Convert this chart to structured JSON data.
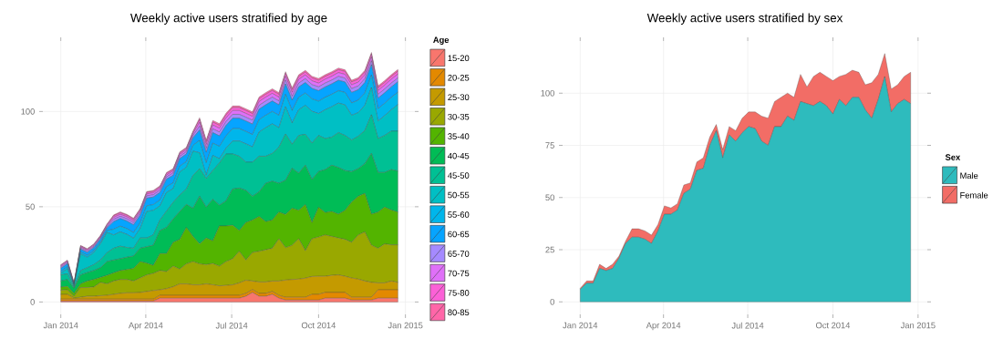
{
  "chart_data": [
    {
      "type": "area",
      "title": "Weekly active users stratified by age",
      "stacked": true,
      "grid": true,
      "legend": "right",
      "legend_title": "Age",
      "x": [
        "2014-01-01",
        "2014-01-08",
        "2014-01-15",
        "2014-01-22",
        "2014-01-29",
        "2014-02-05",
        "2014-02-12",
        "2014-02-19",
        "2014-02-26",
        "2014-03-05",
        "2014-03-12",
        "2014-03-19",
        "2014-03-26",
        "2014-04-02",
        "2014-04-09",
        "2014-04-16",
        "2014-04-23",
        "2014-04-30",
        "2014-05-07",
        "2014-05-14",
        "2014-05-21",
        "2014-05-28",
        "2014-06-04",
        "2014-06-11",
        "2014-06-18",
        "2014-06-25",
        "2014-07-02",
        "2014-07-09",
        "2014-07-16",
        "2014-07-23",
        "2014-07-30",
        "2014-08-06",
        "2014-08-13",
        "2014-08-20",
        "2014-08-27",
        "2014-09-03",
        "2014-09-10",
        "2014-09-17",
        "2014-09-24",
        "2014-10-01",
        "2014-10-08",
        "2014-10-15",
        "2014-10-22",
        "2014-10-29",
        "2014-11-05",
        "2014-11-12",
        "2014-11-19",
        "2014-11-26",
        "2014-12-03",
        "2014-12-10",
        "2014-12-17",
        "2014-12-24"
      ],
      "xlim": [
        "2013-12-13",
        "2015-01-11"
      ],
      "xticks": [
        {
          "value": "2014-01-01",
          "label": "Jan 2014"
        },
        {
          "value": "2014-04-01",
          "label": "Apr 2014"
        },
        {
          "value": "2014-07-01",
          "label": "Jul 2014"
        },
        {
          "value": "2014-10-01",
          "label": "Oct 2014"
        },
        {
          "value": "2015-01-01",
          "label": "Jan 2015"
        }
      ],
      "ylim": [
        -6.5,
        137
      ],
      "yticks": [
        0,
        50,
        100
      ],
      "series": [
        {
          "name": "15-20",
          "color": "#f8766d",
          "values": [
            0.5,
            0.5,
            0.5,
            0.5,
            0.5,
            0.5,
            0.5,
            0.5,
            0.5,
            0.5,
            0.5,
            0.5,
            0.5,
            0.5,
            0.5,
            2,
            2,
            2,
            2,
            2,
            2,
            2,
            2,
            2,
            2,
            2,
            2,
            2,
            3,
            5,
            3,
            3,
            4,
            2,
            1,
            1,
            1,
            1,
            1,
            1,
            2,
            2,
            2,
            2,
            1,
            1,
            1,
            1,
            2,
            2,
            2,
            2
          ]
        },
        {
          "name": "20-25",
          "color": "#e38900",
          "values": [
            1,
            1,
            1,
            1,
            1,
            1,
            1,
            1,
            1,
            1,
            1,
            1,
            1,
            1,
            1,
            1.5,
            1.5,
            1.5,
            1.5,
            1.5,
            1.5,
            1.5,
            1.5,
            1.5,
            1.5,
            1.5,
            1.5,
            1.5,
            1.5,
            1.5,
            1.5,
            1.5,
            1.5,
            1.5,
            1.5,
            1.5,
            1.5,
            1.5,
            3,
            3,
            3,
            3,
            3,
            3,
            1.5,
            1.5,
            1.5,
            1.5,
            4.4,
            4.4,
            4.4,
            4.4
          ]
        },
        {
          "name": "25-30",
          "color": "#c49a00",
          "values": [
            2.5,
            2.5,
            0.5,
            1,
            1.5,
            1.5,
            1.8,
            2,
            2.5,
            3,
            3.3,
            3.3,
            3.5,
            4,
            4.5,
            2.9,
            3.5,
            4.5,
            6,
            6,
            5.5,
            5.5,
            6,
            5.5,
            5,
            5.2,
            5.5,
            6.5,
            6.9,
            4.5,
            6,
            6,
            5.5,
            7.5,
            9,
            9.3,
            9.5,
            10,
            9.4,
            9.5,
            8.5,
            9,
            9.2,
            8.5,
            10.1,
            9.5,
            8.5,
            7.8,
            3.6,
            3.6,
            4.6,
            3.9
          ]
        },
        {
          "name": "30-35",
          "color": "#99a800",
          "values": [
            2.2,
            2.4,
            1,
            5.1,
            4.6,
            4.9,
            7,
            6,
            7,
            7.3,
            7,
            6.2,
            7.6,
            8.7,
            9,
            10.1,
            9,
            10.8,
            7.8,
            10.5,
            12.2,
            11,
            10.1,
            11.2,
            10.3,
            12.5,
            13.7,
            16.6,
            10.6,
            15,
            16.1,
            16.9,
            17.2,
            22.2,
            17,
            18,
            21.2,
            14.4,
            19.8,
            20.6,
            21.7,
            20.4,
            19.4,
            19.4,
            18.7,
            23.2,
            25.8,
            19.5,
            18.2,
            20.5,
            19,
            19.7
          ]
        },
        {
          "name": "35-40",
          "color": "#53b400",
          "values": [
            1.7,
            1.8,
            1.5,
            1.9,
            3.4,
            3.9,
            2.6,
            4.5,
            4.3,
            4.7,
            5.2,
            6.6,
            8.6,
            6.2,
            4.2,
            8.9,
            9.4,
            12.5,
            15.6,
            19.1,
            13.2,
            10.5,
            14,
            11.9,
            21.1,
            18.7,
            17.6,
            10.9,
            19.7,
            17,
            18.3,
            14.8,
            14.8,
            14,
            17.4,
            19.4,
            14.9,
            24.2,
            8.5,
            15.6,
            11.7,
            13.1,
            12.5,
            15.2,
            21.1,
            20.3,
            20.2,
            16.3,
            19,
            19.3,
            18.3,
            17.2
          ]
        },
        {
          "name": "40-45",
          "color": "#00bc56",
          "values": [
            3.1,
            3.6,
            2.7,
            4.7,
            4.4,
            4.7,
            5.1,
            7.2,
            6.7,
            6.2,
            6.5,
            6.5,
            7,
            8.6,
            10.6,
            12.1,
            13.7,
            12.3,
            14.6,
            12.1,
            14.8,
            25,
            16.2,
            21.8,
            10.9,
            13.2,
            19,
            22.3,
            16.9,
            12.5,
            12.9,
            20.1,
            20.4,
            15.1,
            18,
            21,
            19.5,
            20.7,
            22.6,
            18.8,
            22.6,
            24.3,
            24.5,
            20.9,
            16,
            14.5,
            15.6,
            31.9,
            20.8,
            18.2,
            21.2,
            21.5
          ]
        },
        {
          "name": "45-50",
          "color": "#00c094",
          "values": [
            3.2,
            3,
            0.3,
            2.3,
            2.6,
            3.1,
            4,
            4.7,
            6.2,
            6.6,
            5.1,
            4.1,
            5.4,
            4.6,
            5.4,
            5.5,
            8.6,
            8.7,
            8.7,
            8.1,
            17.2,
            14.5,
            15,
            15.1,
            22.2,
            24.6,
            18.4,
            16.7,
            14.8,
            17.9,
            18.7,
            14.2,
            14.6,
            18.9,
            24.3,
            12.6,
            19.8,
            16.2,
            19.1,
            18.9,
            16.3,
            14.7,
            18.3,
            18.4,
            16.6,
            17,
            17.4,
            20.3,
            17.8,
            19.4,
            20.2,
            21
          ]
        },
        {
          "name": "50-55",
          "color": "#00bfc4",
          "values": [
            0.9,
            2.7,
            0.7,
            8.7,
            5.5,
            6.4,
            8.5,
            10.6,
            7,
            7.5,
            6.9,
            5.3,
            4.9,
            13.9,
            12.9,
            7.5,
            9.8,
            7.2,
            12.1,
            11.4,
            12.8,
            8.3,
            1.8,
            7.9,
            2.2,
            3,
            6.8,
            8,
            9.6,
            8,
            12.7,
            15,
            15.5,
            10.3,
            14.3,
            11.2,
            13.5,
            15.2,
            16.7,
            11.5,
            15.1,
            16,
            15.5,
            16.1,
            13,
            12.4,
            13.2,
            14.3,
            9.2,
            10.4,
            11.2,
            13.9
          ]
        },
        {
          "name": "55-60",
          "color": "#00b6eb",
          "values": [
            1,
            1,
            0.4,
            1,
            1,
            1,
            1,
            1,
            3,
            3,
            3,
            3,
            3,
            3,
            3,
            3,
            3,
            3,
            3,
            3,
            3,
            6.5,
            6.5,
            6.5,
            6.5,
            6.5,
            6.5,
            6.5,
            6.5,
            6.5,
            6.5,
            6.5,
            6.5,
            6.5,
            6.5,
            6.5,
            6.5,
            6.5,
            6.5,
            6.5,
            6.5,
            6.5,
            6.5,
            6.5,
            6.5,
            6.5,
            6.5,
            6.5,
            6.5,
            6.5,
            6.5,
            6.5
          ]
        },
        {
          "name": "60-65",
          "color": "#06a4ff",
          "values": [
            1.5,
            1.5,
            0.4,
            1.5,
            1.5,
            1.5,
            1.5,
            1.5,
            4,
            4,
            4,
            4,
            4,
            4,
            4,
            4,
            4,
            4,
            4,
            4,
            4,
            5.5,
            5.5,
            5.5,
            5.5,
            5.5,
            5.5,
            5.5,
            5.5,
            5.5,
            5.5,
            5.5,
            5.5,
            5.5,
            5.5,
            5.5,
            5.5,
            5.5,
            5.5,
            5.5,
            5.5,
            5.5,
            5.5,
            5.5,
            5.5,
            5.5,
            5.5,
            5.5,
            5.5,
            5.5,
            5.5,
            5.5
          ]
        },
        {
          "name": "65-70",
          "color": "#a58aff",
          "values": [
            0.6,
            0.6,
            0.3,
            0.6,
            0.6,
            0.6,
            0.6,
            0.6,
            1.2,
            1.2,
            1.2,
            1.2,
            1.2,
            1.2,
            1.2,
            1.2,
            1.2,
            1.2,
            1.2,
            1.2,
            1.2,
            2,
            2,
            2,
            2,
            2,
            2,
            2,
            2,
            2,
            2,
            2,
            2,
            2,
            2,
            2,
            2,
            2,
            2,
            2,
            2,
            2,
            2,
            2,
            2,
            2,
            2,
            2,
            2,
            2,
            2,
            2
          ]
        },
        {
          "name": "70-75",
          "color": "#df70f8",
          "values": [
            0.6,
            0.6,
            0.3,
            0.6,
            0.6,
            0.6,
            0.6,
            0.6,
            1,
            1,
            1,
            1,
            1,
            1,
            1,
            1,
            1,
            1,
            1,
            1,
            1,
            2,
            2,
            2,
            2,
            2,
            2,
            2,
            2,
            2,
            2,
            2,
            2,
            2,
            2,
            2,
            2,
            2,
            2,
            2,
            2,
            2,
            2,
            2,
            2,
            2,
            2,
            2,
            2,
            2,
            2,
            2
          ]
        },
        {
          "name": "75-80",
          "color": "#fb61d7",
          "values": [
            0.5,
            0.5,
            0.2,
            0.5,
            0.5,
            0.5,
            0.5,
            0.5,
            0.8,
            0.8,
            0.8,
            0.8,
            0.8,
            0.8,
            0.8,
            0.8,
            0.8,
            0.8,
            0.8,
            0.8,
            0.8,
            1.5,
            1.5,
            1.5,
            1.5,
            1.5,
            1.5,
            1.5,
            1.5,
            1.5,
            1.5,
            1.5,
            1.5,
            1.5,
            1.5,
            1.5,
            1.5,
            1.5,
            1.5,
            1.5,
            1.5,
            1.5,
            1.5,
            1.5,
            1.5,
            1.5,
            1.5,
            1.5,
            1.5,
            1.5,
            1.5,
            1.5
          ]
        },
        {
          "name": "80-85",
          "color": "#ff66a8",
          "values": [
            0.3,
            0.3,
            0.2,
            0.3,
            0.3,
            0.3,
            0.3,
            0.3,
            0.5,
            0.5,
            0.5,
            0.5,
            0.5,
            0.5,
            0.5,
            0.5,
            0.5,
            0.5,
            0.5,
            0.5,
            0.5,
            0.9,
            0.9,
            0.9,
            0.9,
            0.9,
            0.9,
            0.9,
            0.9,
            0.9,
            0.9,
            0.9,
            0.9,
            0.9,
            0.9,
            0.9,
            0.9,
            0.9,
            0.9,
            0.9,
            0.9,
            0.9,
            0.9,
            0.9,
            0.9,
            0.9,
            0.9,
            0.9,
            0.9,
            0.9,
            0.9,
            0.9
          ]
        }
      ]
    },
    {
      "type": "area",
      "title": "Weekly active users stratified by sex",
      "stacked": true,
      "grid": true,
      "legend": "right",
      "legend_title": "Sex",
      "x": [
        "2014-01-01",
        "2014-01-08",
        "2014-01-15",
        "2014-01-22",
        "2014-01-29",
        "2014-02-05",
        "2014-02-12",
        "2014-02-19",
        "2014-02-26",
        "2014-03-05",
        "2014-03-12",
        "2014-03-19",
        "2014-03-26",
        "2014-04-02",
        "2014-04-09",
        "2014-04-16",
        "2014-04-23",
        "2014-04-30",
        "2014-05-07",
        "2014-05-14",
        "2014-05-21",
        "2014-05-28",
        "2014-06-04",
        "2014-06-11",
        "2014-06-18",
        "2014-06-25",
        "2014-07-02",
        "2014-07-09",
        "2014-07-16",
        "2014-07-23",
        "2014-07-30",
        "2014-08-06",
        "2014-08-13",
        "2014-08-20",
        "2014-08-27",
        "2014-09-03",
        "2014-09-10",
        "2014-09-17",
        "2014-09-24",
        "2014-10-01",
        "2014-10-08",
        "2014-10-15",
        "2014-10-22",
        "2014-10-29",
        "2014-11-05",
        "2014-11-12",
        "2014-11-19",
        "2014-11-26",
        "2014-12-03",
        "2014-12-10",
        "2014-12-17",
        "2014-12-24"
      ],
      "xlim": [
        "2013-12-13",
        "2015-01-11"
      ],
      "xticks": [
        {
          "value": "2014-01-01",
          "label": "Jan 2014"
        },
        {
          "value": "2014-04-01",
          "label": "Apr 2014"
        },
        {
          "value": "2014-07-01",
          "label": "Jul 2014"
        },
        {
          "value": "2014-10-01",
          "label": "Oct 2014"
        },
        {
          "value": "2015-01-01",
          "label": "Jan 2015"
        }
      ],
      "ylim": [
        -6,
        125
      ],
      "yticks": [
        0,
        25,
        50,
        75,
        100
      ],
      "series": [
        {
          "name": "Male",
          "color": "#2ebbbd",
          "values": [
            6,
            9,
            9,
            16,
            15,
            16,
            21,
            28,
            31,
            31,
            30,
            28,
            34,
            42,
            42,
            44,
            52,
            54,
            63,
            64,
            75,
            82,
            69,
            80,
            77,
            81,
            84,
            83,
            77,
            75,
            84,
            84,
            89,
            87,
            96,
            95,
            94,
            96,
            94,
            90,
            97,
            94,
            98,
            98,
            92,
            88,
            97,
            108,
            91,
            95,
            97,
            95
          ]
        },
        {
          "name": "Female",
          "color": "#f26d66",
          "values": [
            0.5,
            1,
            1,
            2,
            1,
            2,
            1,
            1,
            4,
            4,
            4,
            4,
            3,
            4,
            3,
            3,
            4,
            3,
            4,
            5,
            4,
            3,
            4,
            4,
            5,
            7,
            7,
            8,
            12,
            13,
            12,
            14,
            11,
            11,
            13,
            8,
            14,
            14,
            14,
            16,
            11,
            15,
            13,
            12,
            12,
            17,
            12,
            11,
            11,
            9,
            11,
            15
          ]
        }
      ]
    }
  ]
}
